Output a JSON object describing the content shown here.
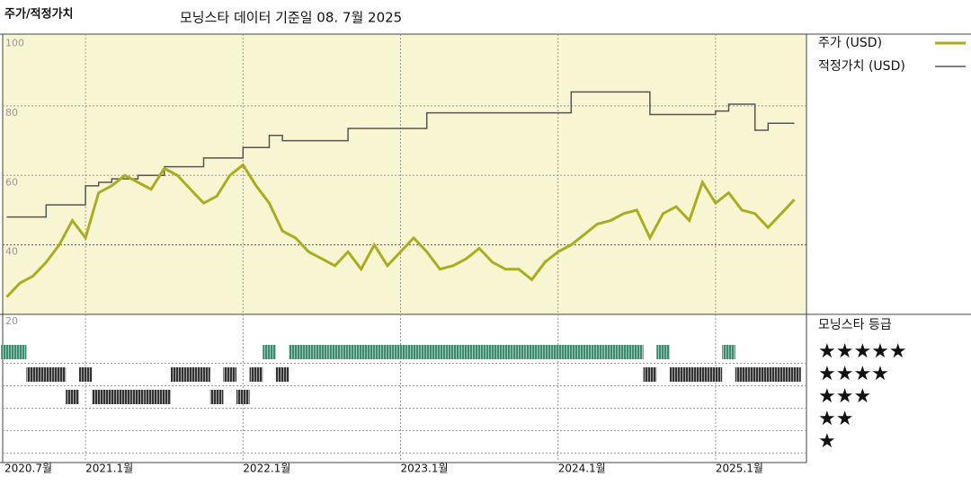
{
  "chart_data": {
    "type": "line",
    "y_label": "주가/적정가치",
    "title": "모닝스타 데이터 기준일 08. 7월 2025",
    "x": [
      "2020-07",
      "2020-08",
      "2020-09",
      "2020-10",
      "2020-11",
      "2020-12",
      "2021-01",
      "2021-02",
      "2021-03",
      "2021-04",
      "2021-05",
      "2021-06",
      "2021-07",
      "2021-08",
      "2021-09",
      "2021-10",
      "2021-11",
      "2021-12",
      "2022-01",
      "2022-02",
      "2022-03",
      "2022-04",
      "2022-05",
      "2022-06",
      "2022-07",
      "2022-08",
      "2022-09",
      "2022-10",
      "2022-11",
      "2022-12",
      "2023-01",
      "2023-02",
      "2023-03",
      "2023-04",
      "2023-05",
      "2023-06",
      "2023-07",
      "2023-08",
      "2023-09",
      "2023-10",
      "2023-11",
      "2023-12",
      "2024-01",
      "2024-02",
      "2024-03",
      "2024-04",
      "2024-05",
      "2024-06",
      "2024-07",
      "2024-08",
      "2024-09",
      "2024-10",
      "2024-11",
      "2024-12",
      "2025-01",
      "2025-02",
      "2025-03",
      "2025-04",
      "2025-05",
      "2025-06",
      "2025-07"
    ],
    "series": [
      {
        "name": "주가 (USD)",
        "color": "#a9ad1f",
        "values": [
          25,
          29,
          31,
          35,
          40,
          47,
          42,
          55,
          57,
          60,
          58,
          56,
          62,
          60,
          56,
          52,
          54,
          60,
          63,
          57,
          52,
          44,
          42,
          38,
          36,
          34,
          38,
          33,
          40,
          34,
          38,
          42,
          38,
          33,
          34,
          36,
          39,
          35,
          33,
          33,
          30,
          35,
          38,
          40,
          43,
          46,
          47,
          49,
          50,
          42,
          49,
          51,
          47,
          58,
          52,
          55,
          50,
          49,
          45,
          49,
          53
        ]
      },
      {
        "name": "적정가치 (USD)",
        "color": "#555555",
        "values": [
          48,
          48,
          48,
          51.5,
          51.5,
          51.5,
          57,
          58,
          59,
          59,
          60,
          60,
          62.5,
          62.5,
          62.5,
          65,
          65,
          65,
          68,
          68,
          71.5,
          70,
          70,
          70,
          70,
          70,
          73.5,
          73.5,
          73.5,
          73.5,
          73.5,
          73.5,
          78,
          78,
          78,
          78,
          78,
          78,
          78,
          78,
          78,
          78,
          78,
          84,
          84,
          84,
          84,
          84,
          84,
          77.5,
          77.5,
          77.5,
          77.5,
          77.5,
          78.5,
          80.5,
          80.5,
          73,
          75,
          75,
          75
        ]
      }
    ],
    "ylim": [
      20,
      100
    ],
    "yticks": [
      20,
      40,
      60,
      80,
      100
    ],
    "xticks": [
      {
        "value": "2020-07",
        "label": "2020.7월"
      },
      {
        "value": "2021-01",
        "label": "2021.1월"
      },
      {
        "value": "2022-01",
        "label": "2022.1월"
      },
      {
        "value": "2023-01",
        "label": "2023.1월"
      },
      {
        "value": "2024-01",
        "label": "2024.1월"
      },
      {
        "value": "2025-01",
        "label": "2025.1월"
      }
    ],
    "grid": true,
    "legend": "right",
    "rating_title": "모닝스타 등급",
    "rating_labels": [
      "★★★★★",
      "★★★★",
      "★★★",
      "★★",
      "★"
    ],
    "ratings": [
      5,
      5,
      4,
      4,
      4,
      3,
      4,
      3,
      3,
      3,
      3,
      3,
      3,
      4,
      4,
      4,
      3,
      4,
      3,
      4,
      5,
      4,
      5,
      5,
      5,
      5,
      5,
      5,
      5,
      5,
      5,
      5,
      5,
      5,
      5,
      5,
      5,
      5,
      5,
      5,
      5,
      5,
      5,
      5,
      5,
      5,
      5,
      5,
      5,
      4,
      5,
      4,
      4,
      4,
      4,
      5,
      4,
      4,
      4,
      4,
      4
    ]
  }
}
